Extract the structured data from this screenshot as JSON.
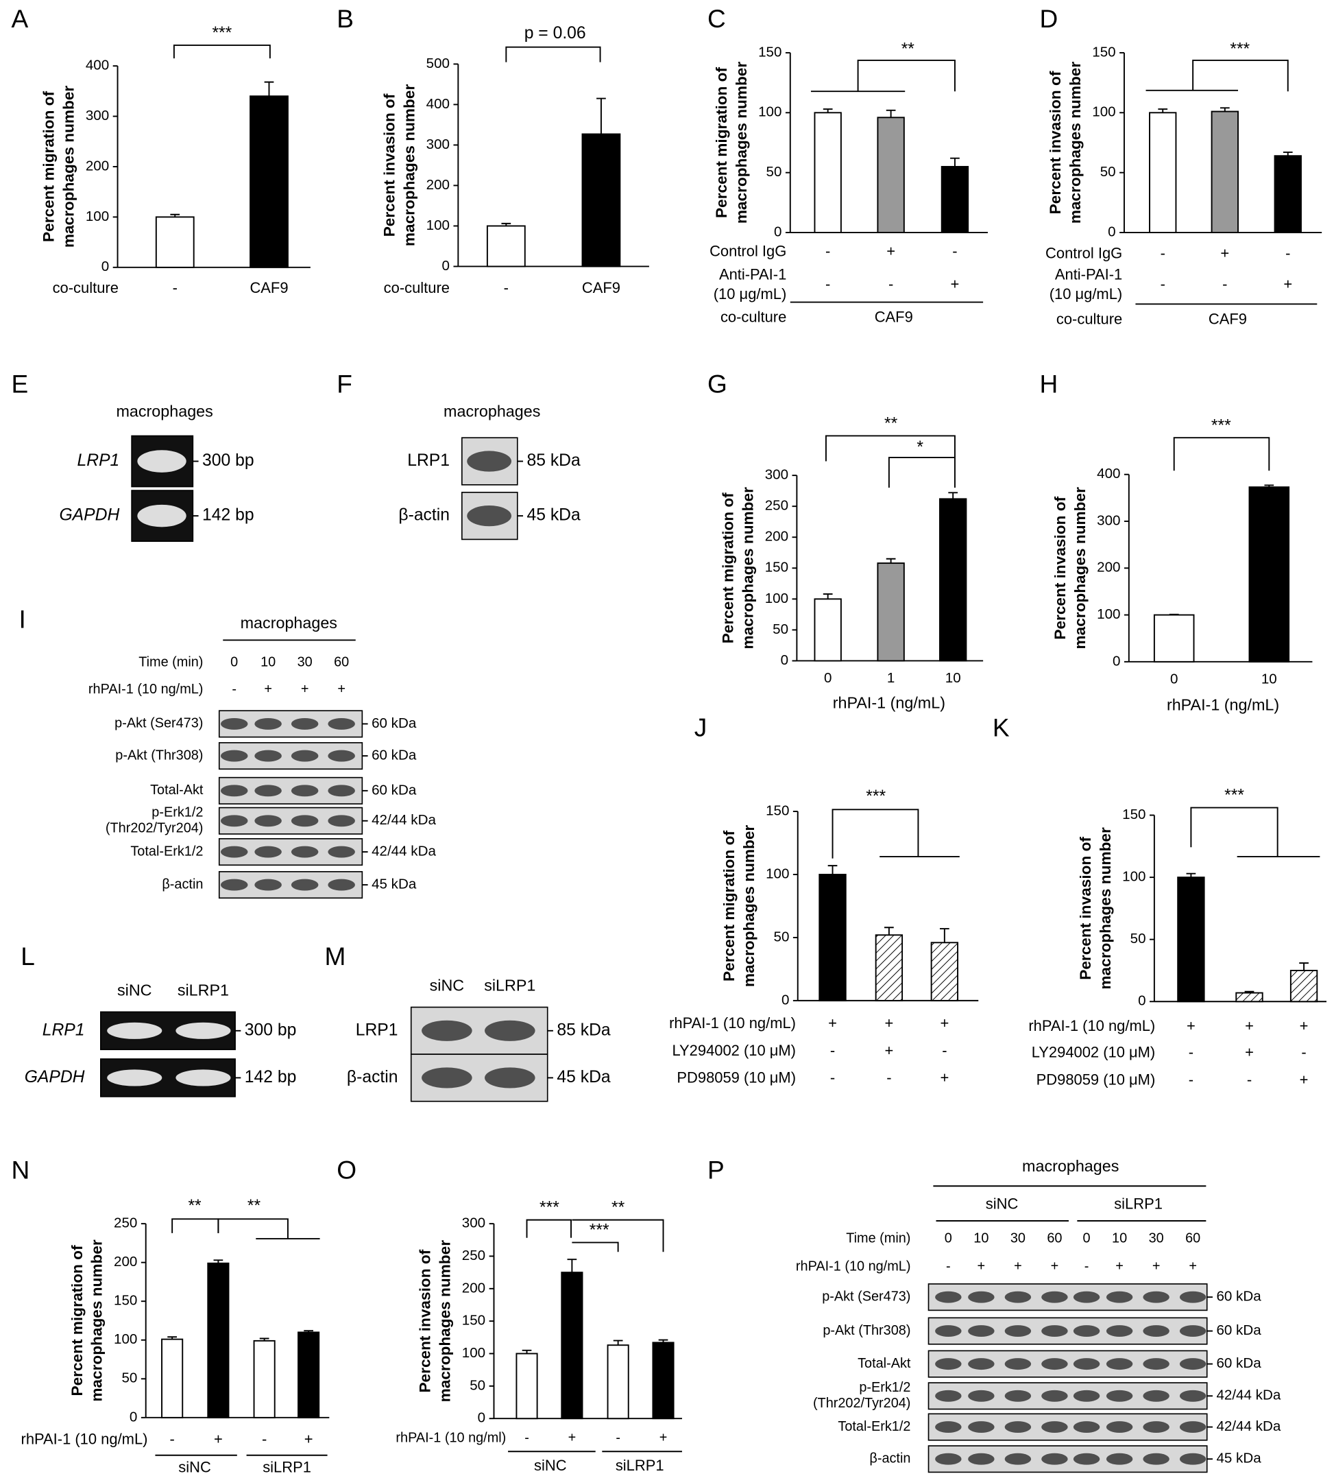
{
  "chart_data": [
    {
      "type": "bar",
      "panel": "A",
      "y_label": [
        "Percent migration of",
        "macrophages number"
      ],
      "ylim": [
        0,
        400
      ],
      "yticks": [
        0,
        100,
        200,
        300,
        400
      ],
      "values": [
        100,
        340
      ],
      "errors": [
        5,
        28
      ],
      "colors": [
        "#ffffff",
        "#000000"
      ],
      "conditions": [
        {
          "label": [
            "co-culture"
          ],
          "marks": [
            "-",
            "CAF9"
          ]
        }
      ],
      "annotations": [
        "***"
      ]
    },
    {
      "type": "bar",
      "panel": "B",
      "y_label": [
        "Percent invasion of",
        "macrophages number"
      ],
      "ylim": [
        0,
        500
      ],
      "yticks": [
        0,
        100,
        200,
        300,
        400,
        500
      ],
      "values": [
        100,
        327
      ],
      "errors": [
        6,
        88
      ],
      "colors": [
        "#ffffff",
        "#000000"
      ],
      "conditions": [
        {
          "label": [
            "co-culture"
          ],
          "marks": [
            "-",
            "CAF9"
          ]
        }
      ],
      "annotations": [
        "p = 0.06"
      ]
    },
    {
      "type": "bar",
      "panel": "C",
      "y_label": [
        "Percent migration of",
        "macrophages number"
      ],
      "ylim": [
        0,
        150
      ],
      "yticks": [
        0,
        50,
        100,
        150
      ],
      "values": [
        100,
        96,
        55
      ],
      "errors": [
        3,
        6,
        7
      ],
      "colors": [
        "#ffffff",
        "#999999",
        "#000000"
      ],
      "conditions": [
        {
          "label": [
            "Control IgG"
          ],
          "marks": [
            "-",
            "+",
            "-"
          ]
        },
        {
          "label": [
            "Anti-PAI-1",
            "(10 μg/mL)"
          ],
          "marks": [
            "-",
            "-",
            "+"
          ]
        }
      ],
      "groups": {
        "label": "co-culture",
        "names": [
          "CAF9"
        ]
      },
      "annotations": [
        "**"
      ]
    },
    {
      "type": "bar",
      "panel": "D",
      "y_label": [
        "Percent invasion of",
        "macrophages number"
      ],
      "ylim": [
        0,
        150
      ],
      "yticks": [
        0,
        50,
        100,
        150
      ],
      "values": [
        100,
        101,
        64
      ],
      "errors": [
        3,
        3,
        3
      ],
      "colors": [
        "#ffffff",
        "#999999",
        "#000000"
      ],
      "conditions": [
        {
          "label": [
            "Control IgG"
          ],
          "marks": [
            "-",
            "+",
            "-"
          ]
        },
        {
          "label": [
            "Anti-PAI-1",
            "(10 μg/mL)"
          ],
          "marks": [
            "-",
            "-",
            "+"
          ]
        }
      ],
      "groups": {
        "label": "co-culture",
        "names": [
          "CAF9"
        ]
      },
      "annotations": [
        "***"
      ]
    },
    {
      "type": "bar",
      "panel": "G",
      "y_label": [
        "Percent migration of",
        "macrophages number"
      ],
      "ylim": [
        0,
        300
      ],
      "yticks": [
        0,
        50,
        100,
        150,
        200,
        250,
        300
      ],
      "categories": [
        0,
        1,
        10
      ],
      "x_label": "rhPAI-1 (ng/mL)",
      "values": [
        100,
        158,
        262
      ],
      "errors": [
        8,
        7,
        10
      ],
      "colors": [
        "#ffffff",
        "#999999",
        "#000000"
      ],
      "annotations": [
        "**",
        "*"
      ]
    },
    {
      "type": "bar",
      "panel": "H",
      "y_label": [
        "Percent invasion of",
        "macrophages number"
      ],
      "ylim": [
        0,
        400
      ],
      "yticks": [
        0,
        100,
        200,
        300,
        400
      ],
      "categories": [
        0,
        10
      ],
      "x_label": "rhPAI-1 (ng/mL)",
      "values": [
        100,
        373
      ],
      "errors": [
        1,
        4
      ],
      "colors": [
        "#ffffff",
        "#000000"
      ],
      "annotations": [
        "***"
      ]
    },
    {
      "type": "bar",
      "panel": "J",
      "y_label": [
        "Percent migration of",
        "macrophages number"
      ],
      "ylim": [
        0,
        150
      ],
      "yticks": [
        0,
        50,
        100,
        150
      ],
      "values": [
        100,
        52,
        46
      ],
      "errors": [
        7,
        6,
        11
      ],
      "colors": [
        "#000000",
        "hatch",
        "hatch"
      ],
      "conditions": [
        {
          "label": [
            "rhPAI-1 (10 ng/mL)"
          ],
          "marks": [
            "+",
            "+",
            "+"
          ]
        },
        {
          "label": [
            "LY294002 (10 μM)"
          ],
          "marks": [
            "-",
            "+",
            "-"
          ]
        },
        {
          "label": [
            "PD98059 (10 μM)"
          ],
          "marks": [
            "-",
            "-",
            "+"
          ]
        }
      ],
      "annotations": [
        "***"
      ]
    },
    {
      "type": "bar",
      "panel": "K",
      "y_label": [
        "Percent invasion of",
        "macrophages number"
      ],
      "ylim": [
        0,
        150
      ],
      "yticks": [
        0,
        50,
        100,
        150
      ],
      "values": [
        100,
        7,
        25
      ],
      "errors": [
        3,
        1,
        6
      ],
      "colors": [
        "#000000",
        "hatch",
        "hatch"
      ],
      "conditions": [
        {
          "label": [
            "rhPAI-1 (10 ng/mL)"
          ],
          "marks": [
            "+",
            "+",
            "+"
          ]
        },
        {
          "label": [
            "LY294002 (10 μM)"
          ],
          "marks": [
            "-",
            "+",
            "-"
          ]
        },
        {
          "label": [
            "PD98059 (10 μM)"
          ],
          "marks": [
            "-",
            "-",
            "+"
          ]
        }
      ],
      "annotations": [
        "***"
      ]
    },
    {
      "type": "bar",
      "panel": "N",
      "y_label": [
        "Percent migration of",
        "macrophages number"
      ],
      "ylim": [
        0,
        250
      ],
      "yticks": [
        0,
        50,
        100,
        150,
        200,
        250
      ],
      "values": [
        101,
        199,
        99,
        110
      ],
      "errors": [
        3,
        4,
        3,
        2
      ],
      "colors": [
        "#ffffff",
        "#000000",
        "#ffffff",
        "#000000"
      ],
      "conditions": [
        {
          "label": [
            "rhPAI-1 (10 ng/mL)"
          ],
          "marks": [
            "-",
            "+",
            "-",
            "+"
          ]
        }
      ],
      "groups": {
        "names": [
          "siNC",
          "siLRP1"
        ]
      },
      "annotations": [
        "**",
        "**"
      ]
    },
    {
      "type": "bar",
      "panel": "O",
      "y_label": [
        "Percent invasion of",
        "macrophages number"
      ],
      "ylim": [
        0,
        300
      ],
      "yticks": [
        0,
        50,
        100,
        150,
        200,
        250,
        300
      ],
      "values": [
        100,
        225,
        113,
        117
      ],
      "errors": [
        5,
        20,
        7,
        4
      ],
      "colors": [
        "#ffffff",
        "#000000",
        "#ffffff",
        "#000000"
      ],
      "conditions": [
        {
          "label": [
            "rhPAI-1 (10 ng/ml)"
          ],
          "marks": [
            "-",
            "+",
            "-",
            "+"
          ]
        }
      ],
      "groups": {
        "names": [
          "siNC",
          "siLRP1"
        ]
      },
      "annotations": [
        "***",
        "***",
        "**"
      ]
    }
  ],
  "blots": [
    {
      "panel": "E",
      "header": "macrophages",
      "rows": [
        {
          "label": [
            "LRP1"
          ],
          "size": "300 bp"
        },
        {
          "label": [
            "GAPDH"
          ],
          "size": "142 bp"
        }
      ]
    },
    {
      "panel": "F",
      "header": "macrophages",
      "rows": [
        {
          "label": [
            "LRP1"
          ],
          "size": "85 kDa"
        },
        {
          "label": [
            "β-actin"
          ],
          "size": "45 kDa"
        }
      ]
    },
    {
      "panel": "I",
      "header": "macrophages",
      "conditions": [
        {
          "label": "Time (min)",
          "values": [
            0,
            10,
            30,
            60
          ]
        },
        {
          "label": "rhPAI-1 (10 ng/mL)",
          "values": [
            "-",
            "+",
            "+",
            "+"
          ]
        }
      ],
      "rows": [
        {
          "label": [
            "p-Akt (Ser473)"
          ],
          "size": "60 kDa"
        },
        {
          "label": [
            "p-Akt (Thr308)"
          ],
          "size": "60 kDa"
        },
        {
          "label": [
            "Total-Akt"
          ],
          "size": "60 kDa"
        },
        {
          "label": [
            "p-Erk1/2",
            "(Thr202/Tyr204)"
          ],
          "size": "42/44 kDa"
        },
        {
          "label": [
            "Total-Erk1/2"
          ],
          "size": "42/44 kDa"
        },
        {
          "label": [
            "β-actin"
          ],
          "size": "45 kDa"
        }
      ]
    },
    {
      "panel": "L",
      "lanes": [
        "siNC",
        "siLRP1"
      ],
      "rows": [
        {
          "label": [
            "LRP1"
          ],
          "size": "300 bp"
        },
        {
          "label": [
            "GAPDH"
          ],
          "size": "142 bp"
        }
      ]
    },
    {
      "panel": "M",
      "lanes": [
        "siNC",
        "siLRP1"
      ],
      "rows": [
        {
          "label": [
            "LRP1"
          ],
          "size": "85 kDa"
        },
        {
          "label": [
            "β-actin"
          ],
          "size": "45 kDa"
        }
      ]
    },
    {
      "panel": "P",
      "header": "macrophages",
      "groups": [
        "siNC",
        "siLRP1"
      ],
      "conditions": [
        {
          "label": "Time (min)",
          "values": [
            0,
            10,
            30,
            60,
            0,
            10,
            30,
            60
          ]
        },
        {
          "label": "rhPAI-1 (10 ng/mL)",
          "values": [
            "-",
            "+",
            "+",
            "+",
            "-",
            "+",
            "+",
            "+"
          ]
        }
      ],
      "rows": [
        {
          "label": [
            "p-Akt (Ser473)"
          ],
          "size": "60 kDa"
        },
        {
          "label": [
            "p-Akt (Thr308)"
          ],
          "size": "60 kDa"
        },
        {
          "label": [
            "Total-Akt"
          ],
          "size": "60 kDa"
        },
        {
          "label": [
            "p-Erk1/2",
            "(Thr202/Tyr204)"
          ],
          "size": "42/44 kDa"
        },
        {
          "label": [
            "Total-Erk1/2"
          ],
          "size": "42/44 kDa"
        },
        {
          "label": [
            "β-actin"
          ],
          "size": "45 kDa"
        }
      ]
    }
  ]
}
